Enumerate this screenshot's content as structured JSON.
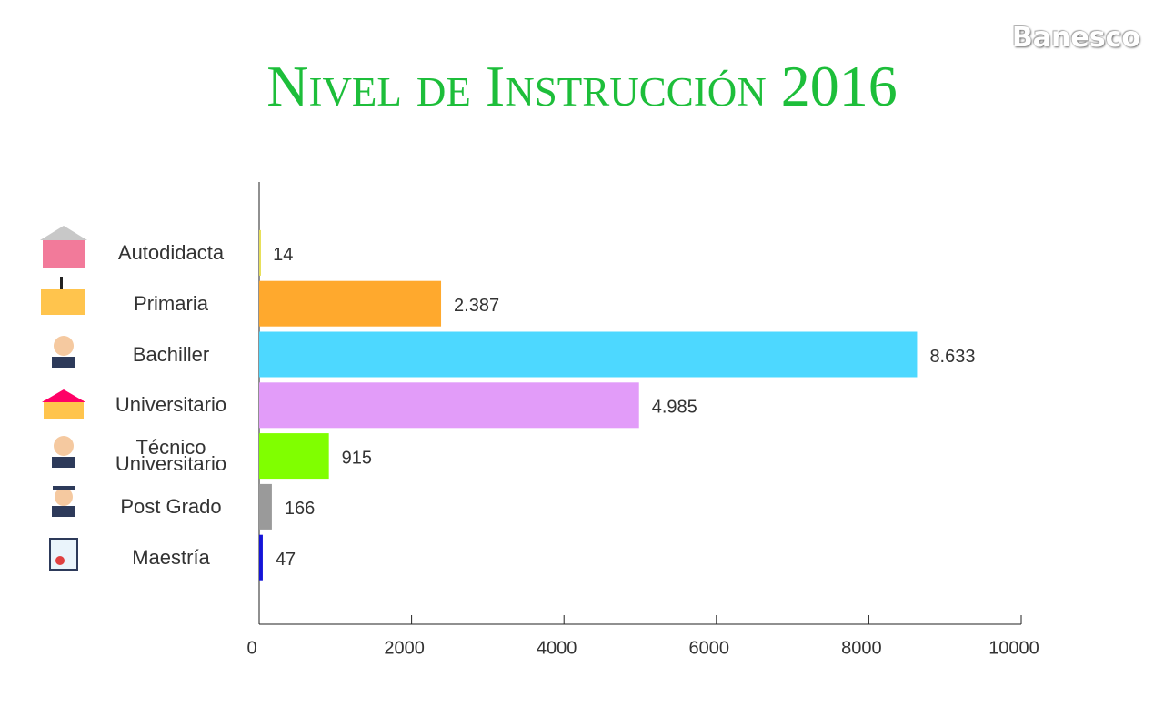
{
  "brand": "Banesco",
  "chart_data": {
    "type": "bar",
    "orientation": "horizontal",
    "title": "Nivel de Instrucción 2016",
    "categories": [
      "Autodidacta",
      "Primaria",
      "Bachiller",
      "Universitario",
      "Técnico Universitario",
      "Post Grado",
      "Maestría"
    ],
    "values": [
      14,
      2387,
      8633,
      4985,
      915,
      166,
      47
    ],
    "value_labels": [
      "14",
      "2.387",
      "8.633",
      "4.985",
      "915",
      "166",
      "47"
    ],
    "colors": [
      "#e8e05a",
      "#ffa92d",
      "#4dd8ff",
      "#e29cf9",
      "#80ff00",
      "#9a9a9a",
      "#1515d8"
    ],
    "xlim": [
      0,
      10000
    ],
    "xticks": [
      0,
      2000,
      4000,
      6000,
      8000,
      10000
    ]
  }
}
